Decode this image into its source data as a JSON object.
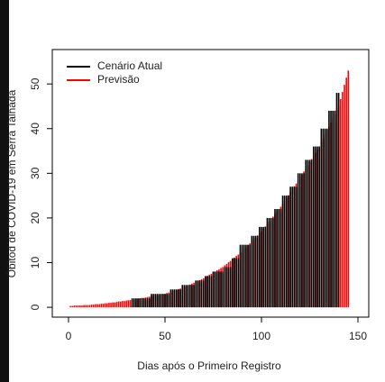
{
  "chart_data": {
    "type": "bar",
    "xlabel": "Dias após o Primeiro Registro",
    "ylabel": "Óbitod de COVID-19 em Serra Talhada",
    "x": [
      1,
      2,
      3,
      4,
      5,
      6,
      7,
      8,
      9,
      10,
      11,
      12,
      13,
      14,
      15,
      16,
      17,
      18,
      19,
      20,
      21,
      22,
      23,
      24,
      25,
      26,
      27,
      28,
      29,
      30,
      31,
      32,
      33,
      34,
      35,
      36,
      37,
      38,
      39,
      40,
      41,
      42,
      43,
      44,
      45,
      46,
      47,
      48,
      49,
      50,
      51,
      52,
      53,
      54,
      55,
      56,
      57,
      58,
      59,
      60,
      61,
      62,
      63,
      64,
      65,
      66,
      67,
      68,
      69,
      70,
      71,
      72,
      73,
      74,
      75,
      76,
      77,
      78,
      79,
      80,
      81,
      82,
      83,
      84,
      85,
      86,
      87,
      88,
      89,
      90,
      91,
      92,
      93,
      94,
      95,
      96,
      97,
      98,
      99,
      100,
      101,
      102,
      103,
      104,
      105,
      106,
      107,
      108,
      109,
      110,
      111,
      112,
      113,
      114,
      115,
      116,
      117,
      118,
      119,
      120,
      121,
      122,
      123,
      124,
      125,
      126,
      127,
      128,
      129,
      130,
      131,
      132,
      133,
      134,
      135,
      136,
      137,
      138,
      139,
      140,
      141,
      142,
      143,
      144,
      145
    ],
    "series": [
      {
        "name": "Previsão",
        "color": "#ff0000",
        "values": [
          0.3,
          0.3,
          0.4,
          0.4,
          0.4,
          0.4,
          0.4,
          0.5,
          0.5,
          0.5,
          0.5,
          0.6,
          0.6,
          0.7,
          0.7,
          0.7,
          0.8,
          0.8,
          0.9,
          0.9,
          1.0,
          1.0,
          1.1,
          1.1,
          1.2,
          1.3,
          1.3,
          1.4,
          1.4,
          1.5,
          1.6,
          1.6,
          1.7,
          1.8,
          1.9,
          1.9,
          2.0,
          2.1,
          2.1,
          2.2,
          2.3,
          2.4,
          2.5,
          2.5,
          2.6,
          2.7,
          2.8,
          2.8,
          2.9,
          3.0,
          3.2,
          3.3,
          3.5,
          3.6,
          3.8,
          3.9,
          4.1,
          4.2,
          4.4,
          4.5,
          4.7,
          4.9,
          5.1,
          5.3,
          5.5,
          5.7,
          5.9,
          6.1,
          6.3,
          6.5,
          6.8,
          7.0,
          7.3,
          7.5,
          7.8,
          8.0,
          8.3,
          8.5,
          8.8,
          9.0,
          9.4,
          9.7,
          10.1,
          10.4,
          10.8,
          11.1,
          11.5,
          11.8,
          12.2,
          12.5,
          13.0,
          13.4,
          13.9,
          14.3,
          14.8,
          15.2,
          15.7,
          16.1,
          16.6,
          17.0,
          17.6,
          18.1,
          18.7,
          19.2,
          19.8,
          20.3,
          20.9,
          21.4,
          22.0,
          22.5,
          23.2,
          23.8,
          24.5,
          25.1,
          25.8,
          26.4,
          27.1,
          27.7,
          28.4,
          29.0,
          29.7,
          30.4,
          31.1,
          31.8,
          32.5,
          33.2,
          33.9,
          34.6,
          35.3,
          36.0,
          36.9,
          37.8,
          38.7,
          39.6,
          40.5,
          41.4,
          42.3,
          43.2,
          44.1,
          45.0,
          46.6,
          48.2,
          49.8,
          51.4,
          53.0
        ]
      },
      {
        "name": "Cenário Atual",
        "color": "#000000",
        "values": [
          0,
          0,
          0,
          0,
          0,
          0,
          0,
          0,
          0,
          0,
          0,
          0,
          0,
          0,
          0,
          0,
          0,
          0,
          0,
          0,
          0,
          0,
          0,
          0,
          0,
          0,
          0,
          0,
          0,
          0,
          0,
          0,
          2,
          2,
          2,
          2,
          2,
          2,
          2,
          2,
          2,
          2,
          3,
          3,
          3,
          3,
          3,
          3,
          3,
          3,
          3,
          3,
          4,
          4,
          4,
          4,
          4,
          4,
          5,
          5,
          5,
          5,
          5,
          5,
          5,
          6,
          6,
          6,
          6,
          6,
          7,
          7,
          7,
          7,
          8,
          8,
          8,
          8,
          8,
          8,
          9,
          9,
          9,
          9,
          11,
          11,
          11,
          11,
          14,
          14,
          14,
          14,
          14,
          14,
          16,
          16,
          16,
          16,
          18,
          18,
          18,
          18,
          20,
          20,
          20,
          20,
          22,
          22,
          22,
          22,
          25,
          25,
          25,
          25,
          27,
          27,
          27,
          27,
          30,
          30,
          30,
          30,
          33,
          33,
          33,
          33,
          36,
          36,
          36,
          36,
          40,
          40,
          40,
          40,
          44,
          44,
          44,
          44,
          48,
          48,
          null,
          null,
          null,
          null,
          null
        ]
      }
    ],
    "xlim": [
      -8.4,
      155.6
    ],
    "xticks": [
      0,
      50,
      100,
      150
    ],
    "ylim": [
      -2.2,
      57.7
    ],
    "yticks": [
      0,
      10,
      20,
      30,
      40,
      50
    ],
    "legend": "top-left"
  }
}
